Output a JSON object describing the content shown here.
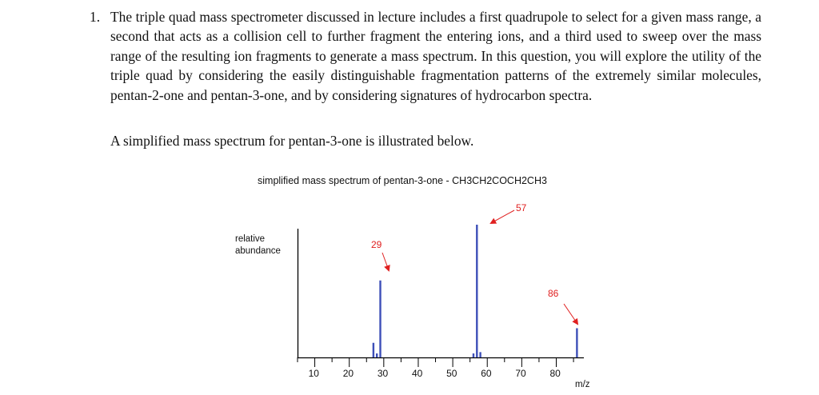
{
  "question": {
    "number": "1.",
    "text": "The triple quad mass spectrometer discussed in lecture includes a first quadrupole to select for a given mass range, a second that acts as a collision cell to further fragment the entering ions, and a third used to sweep over the mass range of the resulting ion fragments to generate a mass spectrum. In this question, you will explore the utility of the triple quad by considering the easily distinguishable fragmentation patterns of the extremely similar molecules, pentan-2-one and pentan-3-one, and by considering signatures of hydrocarbon spectra.",
    "intro": "A simplified mass spectrum for pentan-3-one is illustrated below."
  },
  "chart_data": {
    "type": "bar",
    "title": "simplified mass spectrum of pentan-3-one  -  CH3CH2COCH2CH3",
    "xlabel": "m/z",
    "ylabel": "relative abundance",
    "xlim": [
      5,
      88
    ],
    "ylim": [
      0,
      100
    ],
    "xticks": [
      10,
      20,
      30,
      40,
      50,
      60,
      70,
      80
    ],
    "peaks": [
      {
        "mz": 27,
        "abundance": 11
      },
      {
        "mz": 28,
        "abundance": 3
      },
      {
        "mz": 29,
        "abundance": 58
      },
      {
        "mz": 56,
        "abundance": 3
      },
      {
        "mz": 57,
        "abundance": 100
      },
      {
        "mz": 58,
        "abundance": 4
      },
      {
        "mz": 86,
        "abundance": 22
      }
    ],
    "annotations": [
      {
        "label": "29",
        "mz": 29
      },
      {
        "label": "57",
        "mz": 57
      },
      {
        "label": "86",
        "mz": 86
      }
    ],
    "colors": {
      "peak": "#3d4fb8",
      "annotation": "#e02020",
      "axis": "#000000"
    }
  }
}
